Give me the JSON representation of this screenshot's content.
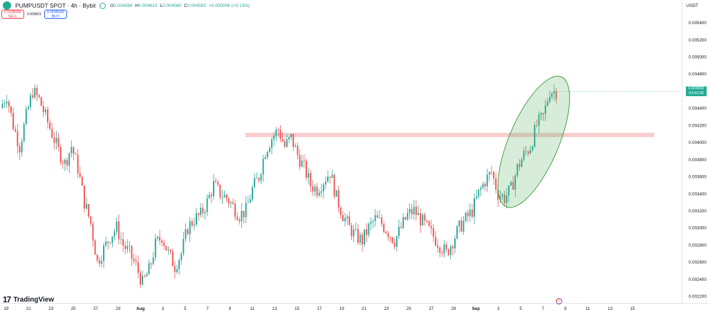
{
  "header": {
    "symbol_title": "PUMPUSDT SPOT · 4h · Bybit",
    "ohlc": [
      {
        "key": "O",
        "value": "0.004586"
      },
      {
        "key": "H",
        "value": "0.004610"
      },
      {
        "key": "L",
        "value": "0.004580"
      },
      {
        "key": "C",
        "value": "0.004592"
      },
      {
        "key": "",
        "value": "+0.000006 (+0.13%)"
      }
    ]
  },
  "trade": {
    "sell_price": "0.004592",
    "sell_label": "SELL",
    "spread": "0.000001",
    "buy_price": "0.004593",
    "buy_label": "BUY"
  },
  "currency": "USDT",
  "last_price": {
    "price": "0.004592",
    "countdown": "03:42:09"
  },
  "brand": "TradingView",
  "colors": {
    "up": "#26a69a",
    "down": "#ef5350",
    "zone": "#f7c4c4",
    "ellipse": "#4caf50"
  },
  "chart_data": {
    "type": "candlestick",
    "y_ticks": [
      "0.005400",
      "0.005200",
      "0.005000",
      "0.004800",
      "0.004600",
      "0.004400",
      "0.004200",
      "0.004000",
      "0.003800",
      "0.003600",
      "0.003400",
      "0.003200",
      "0.003000",
      "0.002800",
      "0.002600",
      "0.002400",
      "0.002200"
    ],
    "ylim": [
      0.00212,
      0.00555
    ],
    "x_ticks": [
      {
        "label": "19",
        "bold": false
      },
      {
        "label": "21",
        "bold": false
      },
      {
        "label": "23",
        "bold": false
      },
      {
        "label": "25",
        "bold": false
      },
      {
        "label": "27",
        "bold": false
      },
      {
        "label": "29",
        "bold": false
      },
      {
        "label": "Aug",
        "bold": true
      },
      {
        "label": "3",
        "bold": false
      },
      {
        "label": "5",
        "bold": false
      },
      {
        "label": "7",
        "bold": false
      },
      {
        "label": "9",
        "bold": false
      },
      {
        "label": "11",
        "bold": false
      },
      {
        "label": "13",
        "bold": false
      },
      {
        "label": "15",
        "bold": false
      },
      {
        "label": "17",
        "bold": false
      },
      {
        "label": "19",
        "bold": false
      },
      {
        "label": "21",
        "bold": false
      },
      {
        "label": "23",
        "bold": false
      },
      {
        "label": "25",
        "bold": false
      },
      {
        "label": "27",
        "bold": false
      },
      {
        "label": "29",
        "bold": false
      },
      {
        "label": "Sep",
        "bold": true
      },
      {
        "label": "3",
        "bold": false
      },
      {
        "label": "5",
        "bold": false
      },
      {
        "label": "7",
        "bold": false
      },
      {
        "label": "9",
        "bold": false
      },
      {
        "label": "11",
        "bold": false
      },
      {
        "label": "13",
        "bold": false
      },
      {
        "label": "15",
        "bold": false
      }
    ],
    "path_closes": [
      0.0044,
      0.00455,
      0.0042,
      0.00395,
      0.0043,
      0.0046,
      0.0045,
      0.0043,
      0.0041,
      0.0039,
      0.00375,
      0.00395,
      0.0037,
      0.0033,
      0.00305,
      0.0026,
      0.00275,
      0.0029,
      0.003,
      0.0028,
      0.0027,
      0.00255,
      0.00235,
      0.0025,
      0.0028,
      0.0029,
      0.0027,
      0.00255,
      0.0027,
      0.003,
      0.0031,
      0.00315,
      0.0033,
      0.0035,
      0.0034,
      0.00335,
      0.00325,
      0.00315,
      0.0032,
      0.00345,
      0.0036,
      0.0039,
      0.00405,
      0.00415,
      0.00395,
      0.00405,
      0.00385,
      0.0037,
      0.0035,
      0.00345,
      0.00355,
      0.00365,
      0.00335,
      0.00315,
      0.003,
      0.0029,
      0.00285,
      0.003,
      0.0031,
      0.00305,
      0.00295,
      0.00285,
      0.003,
      0.00315,
      0.0032,
      0.0031,
      0.003,
      0.0029,
      0.0028,
      0.0027,
      0.00285,
      0.003,
      0.0031,
      0.0032,
      0.0034,
      0.00355,
      0.00365,
      0.0034,
      0.00335,
      0.00345,
      0.0037,
      0.00385,
      0.00395,
      0.0042,
      0.0043,
      0.0046,
      0.004592
    ],
    "resistance_zone": {
      "from": 0.00411,
      "to": 0.00406
    },
    "highlight": "ellipse"
  }
}
